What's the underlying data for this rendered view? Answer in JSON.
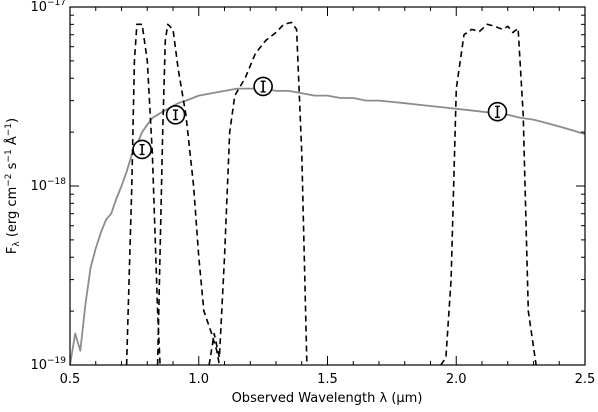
{
  "chart_data": {
    "type": "line",
    "xlabel": "Observed Wavelength λ (μm)",
    "ylabel": {
      "main": "F",
      "sub": "λ",
      "units_open": " (erg cm",
      "exp1": "−2",
      "mid1": " s",
      "exp2": "−1",
      "mid2": " Å",
      "exp3": "−1",
      "units_close": ")"
    },
    "xlim": [
      0.5,
      2.5
    ],
    "ylim": [
      1e-19,
      1e-17
    ],
    "yscale": "log",
    "x_ticks": [
      {
        "value": 0.5,
        "label": "0.5"
      },
      {
        "value": 1.0,
        "label": "1.0"
      },
      {
        "value": 1.5,
        "label": "1.5"
      },
      {
        "value": 2.0,
        "label": "2.0"
      },
      {
        "value": 2.5,
        "label": "2.5"
      }
    ],
    "y_ticks": [
      {
        "value": 1e-19,
        "base": "10",
        "exp": "−19"
      },
      {
        "value": 1e-18,
        "base": "10",
        "exp": "−18"
      },
      {
        "value": 1e-17,
        "base": "10",
        "exp": "−17"
      }
    ],
    "colors": {
      "spectrum": "#8c8c8c",
      "filters": "#000000",
      "photometry": "#000000"
    },
    "series": [
      {
        "style": "solid-gray",
        "x": [
          0.5,
          0.52,
          0.54,
          0.56,
          0.58,
          0.6,
          0.62,
          0.64,
          0.66,
          0.68,
          0.7,
          0.72,
          0.74,
          0.76,
          0.78,
          0.8,
          0.82,
          0.84,
          0.86,
          0.88,
          0.9,
          0.92,
          0.95,
          1.0,
          1.05,
          1.1,
          1.15,
          1.2,
          1.25,
          1.3,
          1.35,
          1.4,
          1.45,
          1.5,
          1.55,
          1.6,
          1.65,
          1.7,
          1.75,
          1.8,
          1.85,
          1.9,
          1.95,
          2.0,
          2.05,
          2.1,
          2.15,
          2.2,
          2.25,
          2.3,
          2.35,
          2.4,
          2.45,
          2.5
        ],
        "y": [
          1e-19,
          1.5e-19,
          1.2e-19,
          2.2e-19,
          3.5e-19,
          4.5e-19,
          5.5e-19,
          6.5e-19,
          7e-19,
          8.5e-19,
          1e-18,
          1.2e-18,
          1.5e-18,
          1.7e-18,
          2e-18,
          2.2e-18,
          2.4e-18,
          2.5e-18,
          2.6e-18,
          2.7e-18,
          2.8e-18,
          2.9e-18,
          3e-18,
          3.2e-18,
          3.3e-18,
          3.4e-18,
          3.5e-18,
          3.5e-18,
          3.5e-18,
          3.4e-18,
          3.4e-18,
          3.3e-18,
          3.2e-18,
          3.2e-18,
          3.1e-18,
          3.1e-18,
          3e-18,
          3e-18,
          2.95e-18,
          2.9e-18,
          2.85e-18,
          2.8e-18,
          2.75e-18,
          2.7e-18,
          2.65e-18,
          2.6e-18,
          2.55e-18,
          2.5e-18,
          2.4e-18,
          2.35e-18,
          2.25e-18,
          2.15e-18,
          2.05e-18,
          1.95e-18
        ]
      },
      {
        "style": "dashed",
        "x": [
          0.72,
          0.74,
          0.75,
          0.76,
          0.78,
          0.8,
          0.82,
          0.84,
          0.85
        ],
        "y": [
          1e-19,
          1e-18,
          5e-18,
          8e-18,
          8e-18,
          5e-18,
          1.5e-18,
          2e-19,
          1e-19
        ]
      },
      {
        "style": "dashed",
        "x": [
          0.84,
          0.86,
          0.87,
          0.88,
          0.9,
          0.92,
          0.95,
          0.98,
          1.0,
          1.02,
          1.05,
          1.07,
          1.08
        ],
        "y": [
          1e-19,
          2e-18,
          6.5e-18,
          8e-18,
          7.5e-18,
          4.5e-18,
          2.5e-18,
          1e-18,
          4e-19,
          2e-19,
          1.5e-19,
          1.2e-19,
          1e-19
        ]
      },
      {
        "style": "dashed",
        "x": [
          1.04,
          1.06,
          1.08,
          1.1,
          1.12,
          1.14,
          1.18,
          1.22,
          1.26,
          1.3,
          1.33,
          1.36,
          1.38,
          1.4,
          1.42
        ],
        "y": [
          1e-19,
          1.5e-19,
          1.1e-19,
          4e-19,
          2e-18,
          3.2e-18,
          4e-18,
          5.5e-18,
          6.5e-18,
          7.2e-18,
          8e-18,
          8.2e-18,
          7.5e-18,
          1.5e-18,
          1e-19
        ]
      },
      {
        "style": "dashed",
        "x": [
          1.94,
          1.96,
          1.98,
          2.0,
          2.03,
          2.06,
          2.09,
          2.12,
          2.15,
          2.18,
          2.2,
          2.22,
          2.24,
          2.26,
          2.28,
          2.31
        ],
        "y": [
          1e-19,
          1.1e-19,
          3e-19,
          3.5e-18,
          7e-18,
          7.5e-18,
          7.3e-18,
          8e-18,
          7.8e-18,
          7.5e-18,
          7.8e-18,
          7.2e-18,
          7.6e-18,
          2.5e-18,
          2e-19,
          1e-19
        ]
      }
    ],
    "points": [
      {
        "x": 0.78,
        "y": 1.6e-18,
        "yerr": 8e-20
      },
      {
        "x": 0.91,
        "y": 2.5e-18,
        "yerr": 1.2e-19
      },
      {
        "x": 1.25,
        "y": 3.6e-18,
        "yerr": 2e-19
      },
      {
        "x": 2.16,
        "y": 2.6e-18,
        "yerr": 1.5e-19
      }
    ]
  }
}
